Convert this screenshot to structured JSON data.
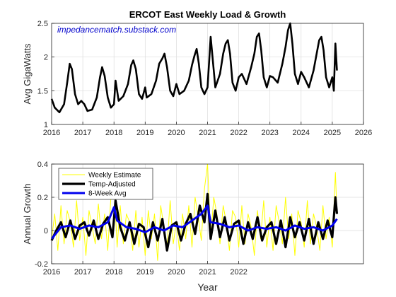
{
  "chart_data": [
    {
      "type": "line",
      "title": "ERCOT East Weekly Load & Growth",
      "xlabel": "",
      "ylabel": "Avg GigaWatts",
      "xlim": [
        2016,
        2026
      ],
      "ylim": [
        1,
        2.5
      ],
      "xticks": [
        "2016",
        "2017",
        "2018",
        "2019",
        "2020",
        "2021",
        "2022",
        "2023",
        "2024",
        "2025",
        "2026"
      ],
      "yticks": [
        "1",
        "1.5",
        "2",
        "2.5"
      ],
      "grid": true,
      "annotation": "impedancematch.substack.com",
      "annotation_color": "#0000cc",
      "series": [
        {
          "color": "#000000",
          "x": [
            2016.0,
            2016.1,
            2016.25,
            2016.4,
            2016.5,
            2016.58,
            2016.65,
            2016.75,
            2016.85,
            2016.95,
            2017.05,
            2017.15,
            2017.3,
            2017.45,
            2017.55,
            2017.62,
            2017.7,
            2017.8,
            2017.9,
            2018.0,
            2018.05,
            2018.15,
            2018.3,
            2018.45,
            2018.55,
            2018.62,
            2018.7,
            2018.8,
            2018.9,
            2019.0,
            2019.05,
            2019.2,
            2019.35,
            2019.45,
            2019.55,
            2019.62,
            2019.7,
            2019.8,
            2019.9,
            2020.0,
            2020.1,
            2020.25,
            2020.4,
            2020.5,
            2020.58,
            2020.65,
            2020.72,
            2020.8,
            2020.9,
            2021.0,
            2021.1,
            2021.25,
            2021.4,
            2021.5,
            2021.58,
            2021.65,
            2021.72,
            2021.8,
            2021.9,
            2022.0,
            2022.1,
            2022.25,
            2022.4,
            2022.5,
            2022.58,
            2022.65,
            2022.72,
            2022.8,
            2022.9,
            2023.0,
            2023.1,
            2023.25,
            2023.4,
            2023.5,
            2023.58,
            2023.65,
            2023.72,
            2023.8,
            2023.9,
            2024.0,
            2024.1,
            2024.25,
            2024.4,
            2024.5,
            2024.58,
            2024.65,
            2024.72,
            2024.8,
            2024.9,
            2025.0,
            2025.05,
            2025.1,
            2025.15
          ],
          "y": [
            1.38,
            1.25,
            1.18,
            1.3,
            1.62,
            1.9,
            1.82,
            1.45,
            1.3,
            1.35,
            1.3,
            1.2,
            1.22,
            1.4,
            1.7,
            1.85,
            1.72,
            1.4,
            1.25,
            1.3,
            1.65,
            1.35,
            1.42,
            1.6,
            1.88,
            1.95,
            1.82,
            1.45,
            1.38,
            1.55,
            1.4,
            1.45,
            1.65,
            1.9,
            1.98,
            2.05,
            1.85,
            1.5,
            1.42,
            1.6,
            1.45,
            1.5,
            1.65,
            1.88,
            2.02,
            2.12,
            1.9,
            1.55,
            1.45,
            1.55,
            2.3,
            1.55,
            1.75,
            2.05,
            2.2,
            2.25,
            2.05,
            1.62,
            1.5,
            1.7,
            1.75,
            1.6,
            1.85,
            2.05,
            2.3,
            2.35,
            2.1,
            1.7,
            1.55,
            1.72,
            1.7,
            1.62,
            1.9,
            2.15,
            2.4,
            2.5,
            2.2,
            1.75,
            1.6,
            1.78,
            1.7,
            1.55,
            1.8,
            2.05,
            2.25,
            2.3,
            2.1,
            1.7,
            1.55,
            1.7,
            1.5,
            2.2,
            1.8
          ]
        }
      ]
    },
    {
      "type": "line",
      "title": "",
      "xlabel": "Year",
      "ylabel": "Annual Growth",
      "xlim": [
        2016,
        2026
      ],
      "ylim": [
        -0.2,
        0.4
      ],
      "xticks": [
        "2016",
        "2017",
        "2018",
        "2019",
        "2020",
        "2021",
        "2022"
      ],
      "yticks": [
        "-0.2",
        "0",
        "0.2",
        "0.4"
      ],
      "grid": true,
      "legend": "top-left",
      "series": [
        {
          "name": "Weekly Estimate",
          "color": "#ffff00",
          "x": [
            2016.0,
            2016.1,
            2016.2,
            2016.3,
            2016.4,
            2016.5,
            2016.6,
            2016.7,
            2016.8,
            2016.9,
            2017.0,
            2017.1,
            2017.2,
            2017.3,
            2017.4,
            2017.5,
            2017.6,
            2017.7,
            2017.8,
            2017.9,
            2018.0,
            2018.1,
            2018.2,
            2018.3,
            2018.4,
            2018.5,
            2018.6,
            2018.7,
            2018.8,
            2018.9,
            2019.0,
            2019.1,
            2019.2,
            2019.3,
            2019.4,
            2019.5,
            2019.6,
            2019.7,
            2019.8,
            2019.9,
            2020.0,
            2020.1,
            2020.2,
            2020.3,
            2020.4,
            2020.5,
            2020.6,
            2020.7,
            2020.8,
            2020.9,
            2021.0,
            2021.1,
            2021.2,
            2021.3,
            2021.4,
            2021.5,
            2021.6,
            2021.7,
            2021.8,
            2021.9,
            2022.0,
            2022.1,
            2022.2,
            2022.3,
            2022.4,
            2022.5,
            2022.6,
            2022.7,
            2022.8,
            2022.9,
            2023.0,
            2023.1,
            2023.2,
            2023.3,
            2023.4,
            2023.5,
            2023.6,
            2023.7,
            2023.8,
            2023.9,
            2024.0,
            2024.1,
            2024.2,
            2024.3,
            2024.4,
            2024.5,
            2024.6,
            2024.7,
            2024.8,
            2024.9,
            2025.0,
            2025.1,
            2025.15
          ],
          "y": [
            -0.05,
            0.1,
            -0.12,
            0.15,
            -0.08,
            0.12,
            0.05,
            -0.1,
            0.18,
            -0.06,
            0.08,
            -0.15,
            0.12,
            0.02,
            -0.08,
            0.16,
            -0.05,
            0.1,
            -0.12,
            0.2,
            0.3,
            -0.1,
            0.15,
            -0.08,
            0.1,
            0.05,
            -0.12,
            0.12,
            -0.1,
            0.08,
            -0.15,
            0.12,
            -0.05,
            0.1,
            -0.18,
            0.15,
            0.02,
            -0.1,
            0.18,
            -0.08,
            0.05,
            -0.12,
            0.1,
            -0.05,
            0.15,
            -0.1,
            0.2,
            0.08,
            -0.06,
            0.25,
            0.4,
            -0.05,
            0.2,
            0.1,
            -0.08,
            0.15,
            0.05,
            -0.12,
            0.12,
            0.08,
            -0.1,
            0.15,
            -0.08,
            0.1,
            0.02,
            -0.15,
            0.12,
            -0.05,
            0.18,
            -0.1,
            0.08,
            -0.12,
            0.15,
            0.05,
            -0.08,
            0.2,
            -0.05,
            0.1,
            -0.15,
            0.12,
            0.05,
            -0.1,
            0.18,
            -0.08,
            0.1,
            0.02,
            -0.12,
            0.15,
            -0.05,
            0.08,
            -0.1,
            0.35,
            0.1
          ]
        },
        {
          "name": "Temp-Adjusted",
          "color": "#000000",
          "x": [
            2016.0,
            2016.15,
            2016.3,
            2016.45,
            2016.6,
            2016.75,
            2016.9,
            2017.05,
            2017.2,
            2017.35,
            2017.5,
            2017.65,
            2017.8,
            2017.95,
            2018.05,
            2018.2,
            2018.35,
            2018.5,
            2018.65,
            2018.8,
            2018.95,
            2019.1,
            2019.25,
            2019.4,
            2019.55,
            2019.7,
            2019.85,
            2020.0,
            2020.15,
            2020.3,
            2020.45,
            2020.6,
            2020.75,
            2020.9,
            2021.0,
            2021.1,
            2021.25,
            2021.4,
            2021.55,
            2021.7,
            2021.85,
            2022.0,
            2022.15,
            2022.3,
            2022.45,
            2022.6,
            2022.75,
            2022.9,
            2023.05,
            2023.2,
            2023.35,
            2023.5,
            2023.65,
            2023.8,
            2023.95,
            2024.1,
            2024.25,
            2024.4,
            2024.55,
            2024.7,
            2024.85,
            2025.0,
            2025.1,
            2025.15
          ],
          "y": [
            -0.06,
            0.0,
            0.05,
            -0.04,
            0.06,
            -0.05,
            0.03,
            0.05,
            -0.03,
            0.06,
            -0.05,
            0.04,
            0.08,
            -0.04,
            0.18,
            0.02,
            -0.06,
            0.05,
            -0.08,
            0.04,
            0.02,
            -0.1,
            0.05,
            -0.06,
            0.07,
            -0.12,
            0.03,
            0.05,
            -0.06,
            0.04,
            0.1,
            -0.02,
            0.15,
            0.05,
            0.22,
            -0.05,
            0.12,
            -0.04,
            0.08,
            -0.06,
            0.04,
            0.06,
            -0.08,
            0.05,
            -0.05,
            0.08,
            -0.06,
            0.02,
            0.05,
            -0.08,
            0.06,
            -0.1,
            0.08,
            -0.04,
            0.05,
            -0.06,
            0.07,
            -0.08,
            0.05,
            -0.05,
            0.06,
            -0.04,
            0.2,
            0.1
          ]
        },
        {
          "name": "8-Week Avg",
          "color": "#0000ee",
          "x": [
            2016.0,
            2016.3,
            2016.6,
            2016.9,
            2017.2,
            2017.5,
            2017.8,
            2018.0,
            2018.1,
            2018.4,
            2018.7,
            2019.0,
            2019.3,
            2019.6,
            2019.9,
            2020.2,
            2020.5,
            2020.8,
            2021.0,
            2021.1,
            2021.4,
            2021.7,
            2022.0,
            2022.3,
            2022.6,
            2022.9,
            2023.2,
            2023.5,
            2023.8,
            2024.1,
            2024.4,
            2024.7,
            2025.0,
            2025.15
          ],
          "y": [
            -0.05,
            0.02,
            0.03,
            0.01,
            0.03,
            0.02,
            0.05,
            0.14,
            0.06,
            0.02,
            0.01,
            -0.01,
            0.02,
            0.0,
            0.03,
            0.02,
            0.06,
            0.1,
            0.15,
            0.05,
            0.04,
            0.02,
            0.03,
            0.0,
            0.02,
            0.01,
            0.02,
            0.0,
            0.03,
            0.01,
            0.02,
            0.0,
            0.03,
            0.07
          ]
        }
      ]
    }
  ]
}
